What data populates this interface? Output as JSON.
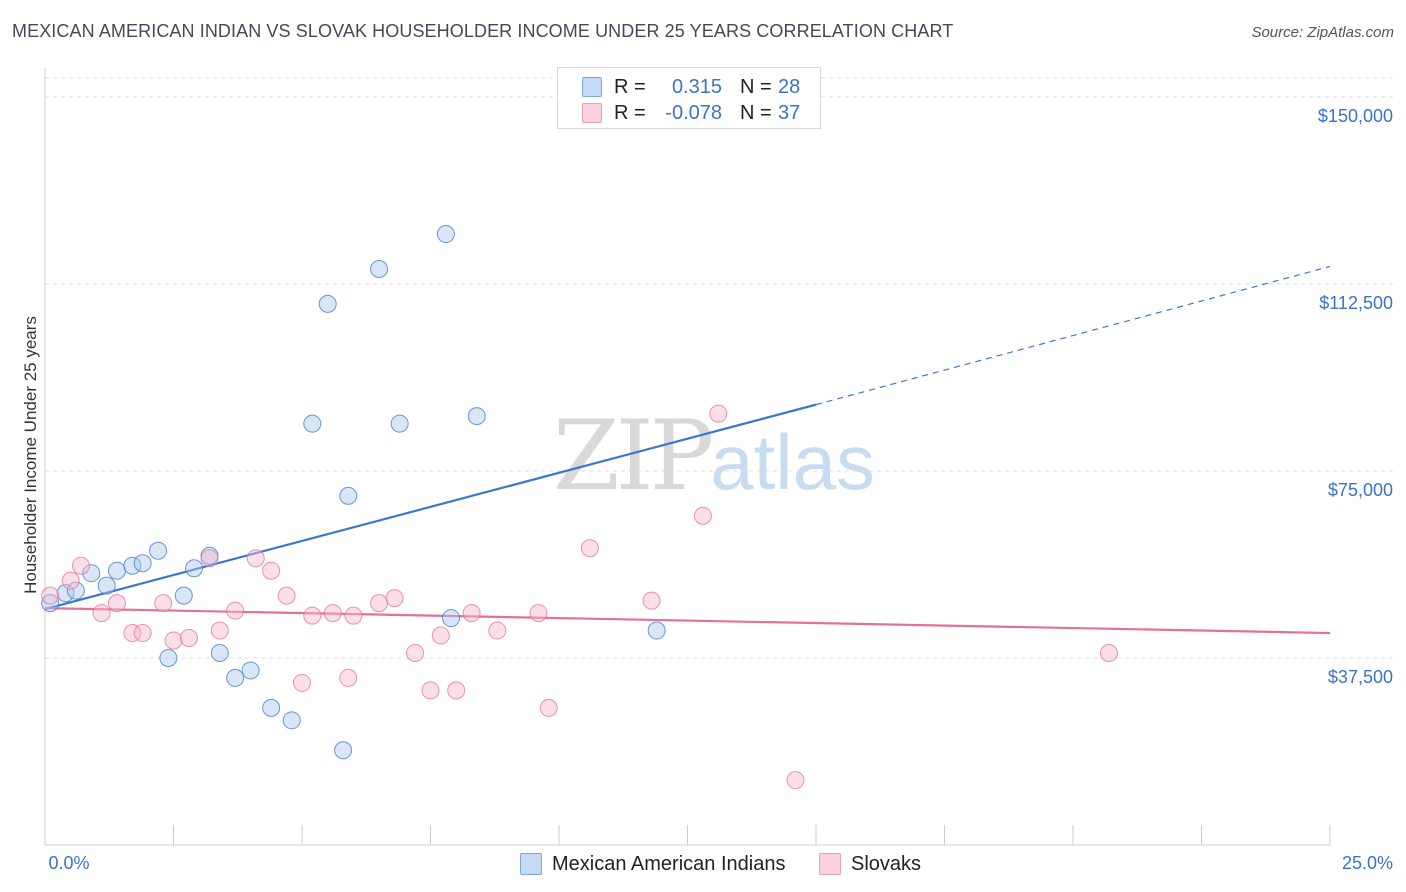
{
  "header": {
    "title": "MEXICAN AMERICAN INDIAN VS SLOVAK HOUSEHOLDER INCOME UNDER 25 YEARS CORRELATION CHART",
    "source": "Source: ZipAtlas.com"
  },
  "watermark": {
    "zip": "ZIP",
    "atlas": "atlas"
  },
  "legend": {
    "rows": [
      {
        "r_label": "R =",
        "r_value": "0.315",
        "n_label": "N =",
        "n_value": "28",
        "color": "#a9c8f0"
      },
      {
        "r_label": "R =",
        "r_value": "-0.078",
        "n_label": "N =",
        "n_value": "37",
        "color": "#f5b9cc"
      }
    ]
  },
  "bottom_legend": [
    {
      "label": "Mexican American Indians",
      "color": "#a9c8f0"
    },
    {
      "label": "Slovaks",
      "color": "#f5b9cc"
    }
  ],
  "chart_data": {
    "type": "scatter",
    "ylabel": "Householder Income Under 25 years",
    "xlabel": "",
    "xlim": [
      0,
      25
    ],
    "ylim": [
      0,
      157000
    ],
    "x_tick_labels": [
      "0.0%",
      "25.0%"
    ],
    "y_ticks": [
      {
        "value": 37500,
        "label": "$37,500"
      },
      {
        "value": 75000,
        "label": "$75,000"
      },
      {
        "value": 112500,
        "label": "$112,500"
      },
      {
        "value": 150000,
        "label": "$150,000"
      }
    ],
    "grid": true,
    "series": [
      {
        "name": "Mexican American Indians",
        "color": "#3a78cf",
        "fill": "#a9c8f0",
        "trend": {
          "x0": 0,
          "y0": 47300,
          "x1": 15,
          "y1": 88300,
          "x_dash_end": 25,
          "y_dash_end": 116000
        },
        "points": [
          [
            0.1,
            48500
          ],
          [
            0.4,
            50500
          ],
          [
            0.6,
            51000
          ],
          [
            0.9,
            54500
          ],
          [
            1.2,
            52000
          ],
          [
            1.4,
            55000
          ],
          [
            1.7,
            56000
          ],
          [
            1.9,
            56500
          ],
          [
            2.2,
            59000
          ],
          [
            2.4,
            37500
          ],
          [
            2.7,
            50000
          ],
          [
            2.9,
            55500
          ],
          [
            3.2,
            58000
          ],
          [
            3.4,
            38500
          ],
          [
            3.7,
            33500
          ],
          [
            4.0,
            35000
          ],
          [
            4.4,
            27500
          ],
          [
            4.8,
            25000
          ],
          [
            5.2,
            84500
          ],
          [
            5.5,
            108500
          ],
          [
            5.8,
            19000
          ],
          [
            5.9,
            70000
          ],
          [
            6.5,
            115500
          ],
          [
            6.9,
            84500
          ],
          [
            7.8,
            122500
          ],
          [
            7.9,
            45500
          ],
          [
            8.4,
            86000
          ],
          [
            11.9,
            43000
          ]
        ]
      },
      {
        "name": "Slovaks",
        "color": "#e56f9b",
        "fill": "#f5b9cc",
        "trend": {
          "x0": 0,
          "y0": 47500,
          "x1": 25,
          "y1": 42500
        },
        "points": [
          [
            0.1,
            50000
          ],
          [
            0.5,
            53000
          ],
          [
            0.7,
            56000
          ],
          [
            1.1,
            46500
          ],
          [
            1.4,
            48500
          ],
          [
            1.7,
            42500
          ],
          [
            1.9,
            42500
          ],
          [
            2.3,
            48500
          ],
          [
            2.5,
            41000
          ],
          [
            2.8,
            41500
          ],
          [
            3.2,
            57500
          ],
          [
            3.4,
            43000
          ],
          [
            3.7,
            47000
          ],
          [
            4.1,
            57500
          ],
          [
            4.4,
            55000
          ],
          [
            4.7,
            50000
          ],
          [
            5.0,
            32500
          ],
          [
            5.2,
            46000
          ],
          [
            5.6,
            46500
          ],
          [
            5.9,
            33500
          ],
          [
            6.0,
            46000
          ],
          [
            6.5,
            48500
          ],
          [
            6.8,
            49500
          ],
          [
            7.2,
            38500
          ],
          [
            7.5,
            31000
          ],
          [
            7.7,
            42000
          ],
          [
            8.0,
            31000
          ],
          [
            8.3,
            46500
          ],
          [
            8.8,
            43000
          ],
          [
            9.6,
            46500
          ],
          [
            9.8,
            27500
          ],
          [
            10.6,
            59500
          ],
          [
            11.8,
            49000
          ],
          [
            12.8,
            66000
          ],
          [
            13.1,
            86500
          ],
          [
            14.6,
            13000
          ],
          [
            20.7,
            38500
          ]
        ]
      }
    ]
  }
}
